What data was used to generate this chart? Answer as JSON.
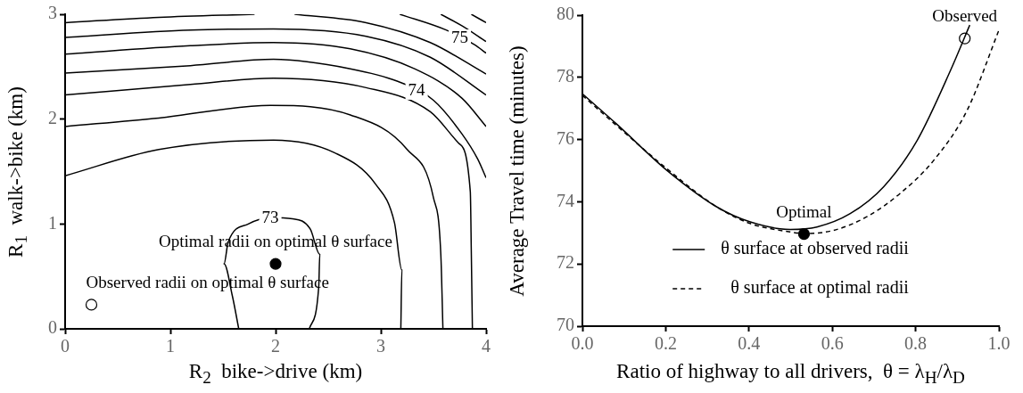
{
  "chart_data": [
    {
      "type": "line",
      "xlabel": "R$_{2}$  bike->drive (km)",
      "ylabel": "R$_{1}$  walk->bike (km)",
      "xlim": [
        0,
        4
      ],
      "ylim": [
        0,
        3
      ],
      "xticks": [
        0,
        1,
        2,
        3,
        4
      ],
      "yticks": [
        0,
        1,
        2,
        3
      ],
      "grid": false,
      "legend": false,
      "series": [
        {
          "type": "line",
          "color": "#000000",
          "marker": "none",
          "x": [
            1.65,
            1.59,
            1.51,
            1.55,
            1.74,
            1.95,
            2.16,
            2.33,
            2.42,
            2.41,
            2.32
          ],
          "values": [
            0,
            0.31,
            0.62,
            0.83,
            1.0,
            1.06,
            1.05,
            0.95,
            0.71,
            0.4,
            0
          ]
        },
        {
          "type": "line",
          "color": "#000000",
          "marker": "none",
          "x": [
            0,
            0.89,
            1.98,
            2.56,
            2.95,
            3.13,
            3.2,
            3.19
          ],
          "values": [
            1.46,
            1.71,
            1.8,
            1.68,
            1.38,
            1.01,
            0.56,
            0
          ]
        },
        {
          "type": "line",
          "color": "#000000",
          "marker": "none",
          "x": [
            0,
            0.89,
            1.95,
            2.71,
            3.25,
            3.5,
            3.57,
            3.59
          ],
          "values": [
            1.93,
            2.01,
            2.13,
            2.04,
            1.71,
            1.25,
            0.71,
            0
          ]
        },
        {
          "type": "line",
          "color": "#000000",
          "marker": "none",
          "x": [
            0,
            1.19,
            1.98,
            2.86,
            3.47,
            3.74,
            3.85,
            3.86,
            3.87
          ],
          "values": [
            2.23,
            2.33,
            2.39,
            2.3,
            2.07,
            1.77,
            1.31,
            0.71,
            0
          ]
        },
        {
          "type": "line",
          "color": "#000000",
          "marker": "none",
          "x": [
            0,
            1.19,
            1.98,
            2.71,
            3.16,
            3.5,
            3.77,
            3.92,
            4
          ],
          "values": [
            2.44,
            2.51,
            2.57,
            2.48,
            2.36,
            2.18,
            1.86,
            1.62,
            1.44
          ]
        },
        {
          "type": "line",
          "color": "#000000",
          "marker": "none",
          "x": [
            0,
            1.19,
            1.98,
            2.71,
            3.32,
            3.77,
            4
          ],
          "values": [
            2.62,
            2.7,
            2.73,
            2.67,
            2.48,
            2.2,
            1.93
          ]
        },
        {
          "type": "line",
          "color": "#000000",
          "marker": "none",
          "x": [
            0,
            1.19,
            1.98,
            2.86,
            3.47,
            4
          ],
          "values": [
            2.78,
            2.85,
            2.86,
            2.79,
            2.59,
            2.23
          ]
        },
        {
          "type": "line",
          "color": "#000000",
          "marker": "none",
          "x": [
            0,
            0.89,
            1.8,
            2.0,
            2.18,
            2.86,
            3.47,
            4
          ],
          "values": [
            2.92,
            2.97,
            3.0,
            null,
            3.0,
            2.92,
            2.73,
            2.43
          ]
        },
        {
          "type": "line",
          "color": "#000000",
          "marker": "none",
          "x": [
            3.18,
            3.62,
            3.89,
            4
          ],
          "values": [
            3.0,
            2.85,
            2.71,
            2.63
          ]
        },
        {
          "type": "line",
          "color": "#000000",
          "marker": "none",
          "x": [
            3.57,
            3.77,
            4
          ],
          "values": [
            3.0,
            2.89,
            2.74
          ]
        },
        {
          "type": "line",
          "color": "#000000",
          "marker": "none",
          "x": [
            3.86,
            4
          ],
          "values": [
            3.0,
            2.92
          ]
        },
        {
          "type": "scatter",
          "marker": "circle",
          "x": [
            0.25,
            2.0
          ],
          "values": [
            0.23,
            0.62
          ],
          "colors": [
            "#ffffff",
            "#000000"
          ]
        }
      ],
      "annotations": [
        {
          "text": "73",
          "x": 1.95,
          "y": 1.05
        },
        {
          "text": "74",
          "x": 3.34,
          "y": 2.27
        },
        {
          "text": "75",
          "x": 3.75,
          "y": 2.77
        },
        {
          "text": "Optimal radii on optimal θ surface",
          "x": 2.0,
          "y": 0.62
        },
        {
          "text": "Observed radii on optimal θ surface",
          "x": 0.25,
          "y": 0.23
        }
      ]
    },
    {
      "type": "line",
      "xlabel": "Ratio of highway to all drivers,  θ = λ$_{H}$/λ$_{D}$",
      "ylabel": "Average Travel time (minutes)",
      "xlim": [
        0,
        1
      ],
      "ylim": [
        70,
        80
      ],
      "xticks": [
        {
          "value": 0,
          "label": "0.0"
        },
        {
          "value": 0.2,
          "label": "0.2"
        },
        {
          "value": 0.4,
          "label": "0.4"
        },
        {
          "value": 0.6,
          "label": "0.6"
        },
        {
          "value": 0.8,
          "label": "0.8"
        },
        {
          "value": 1,
          "label": "1.0"
        }
      ],
      "yticks": [
        70,
        72,
        74,
        76,
        78,
        80
      ],
      "grid": false,
      "legend": "bottom",
      "series": [
        {
          "type": "line",
          "name": "θ surface at observed radii",
          "color": "#000000",
          "marker": "none",
          "line_style": "solid",
          "x": [
            0,
            0.082,
            0.202,
            0.322,
            0.403,
            0.499,
            0.563,
            0.643,
            0.723,
            0.804,
            0.884,
            0.93
          ],
          "values": [
            77.47,
            76.5,
            75.02,
            73.84,
            73.35,
            73.11,
            73.19,
            73.62,
            74.48,
            75.98,
            78.23,
            79.68
          ]
        },
        {
          "type": "line",
          "name": "θ surface at optimal radii",
          "color": "#000000",
          "marker": "none",
          "line_style": "dashed",
          "x": [
            0,
            0.082,
            0.202,
            0.322,
            0.403,
            0.499,
            0.532,
            0.603,
            0.683,
            0.763,
            0.844,
            0.924,
            1.0
          ],
          "values": [
            77.42,
            76.45,
            75.07,
            73.84,
            73.3,
            73.03,
            72.98,
            73.08,
            73.52,
            74.27,
            75.34,
            76.95,
            79.52
          ]
        },
        {
          "type": "scatter",
          "marker": "circle",
          "x": [
            0.918,
            0.532
          ],
          "values": [
            79.25,
            72.96
          ],
          "colors": [
            "#ffffff",
            "#000000"
          ]
        }
      ],
      "annotations": [
        {
          "text": "Observed",
          "x": 0.918,
          "y": 79.25
        },
        {
          "text": "Optimal",
          "x": 0.532,
          "y": 72.96
        }
      ]
    }
  ]
}
